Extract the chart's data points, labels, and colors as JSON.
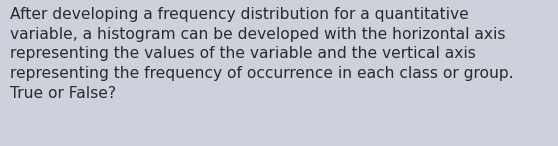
{
  "background_color": "#cdd1db",
  "text": "After developing a frequency distribution for a quantitative\nvariable, a histogram can be developed with the horizontal axis\nrepresenting the values of the variable and the vertical axis\nrepresenting the frequency of occurrence in each class or group.\nTrue or False?",
  "text_color": "#2b2b2b",
  "font_size": 11.2,
  "fig_width": 5.58,
  "fig_height": 1.46,
  "dpi": 100
}
